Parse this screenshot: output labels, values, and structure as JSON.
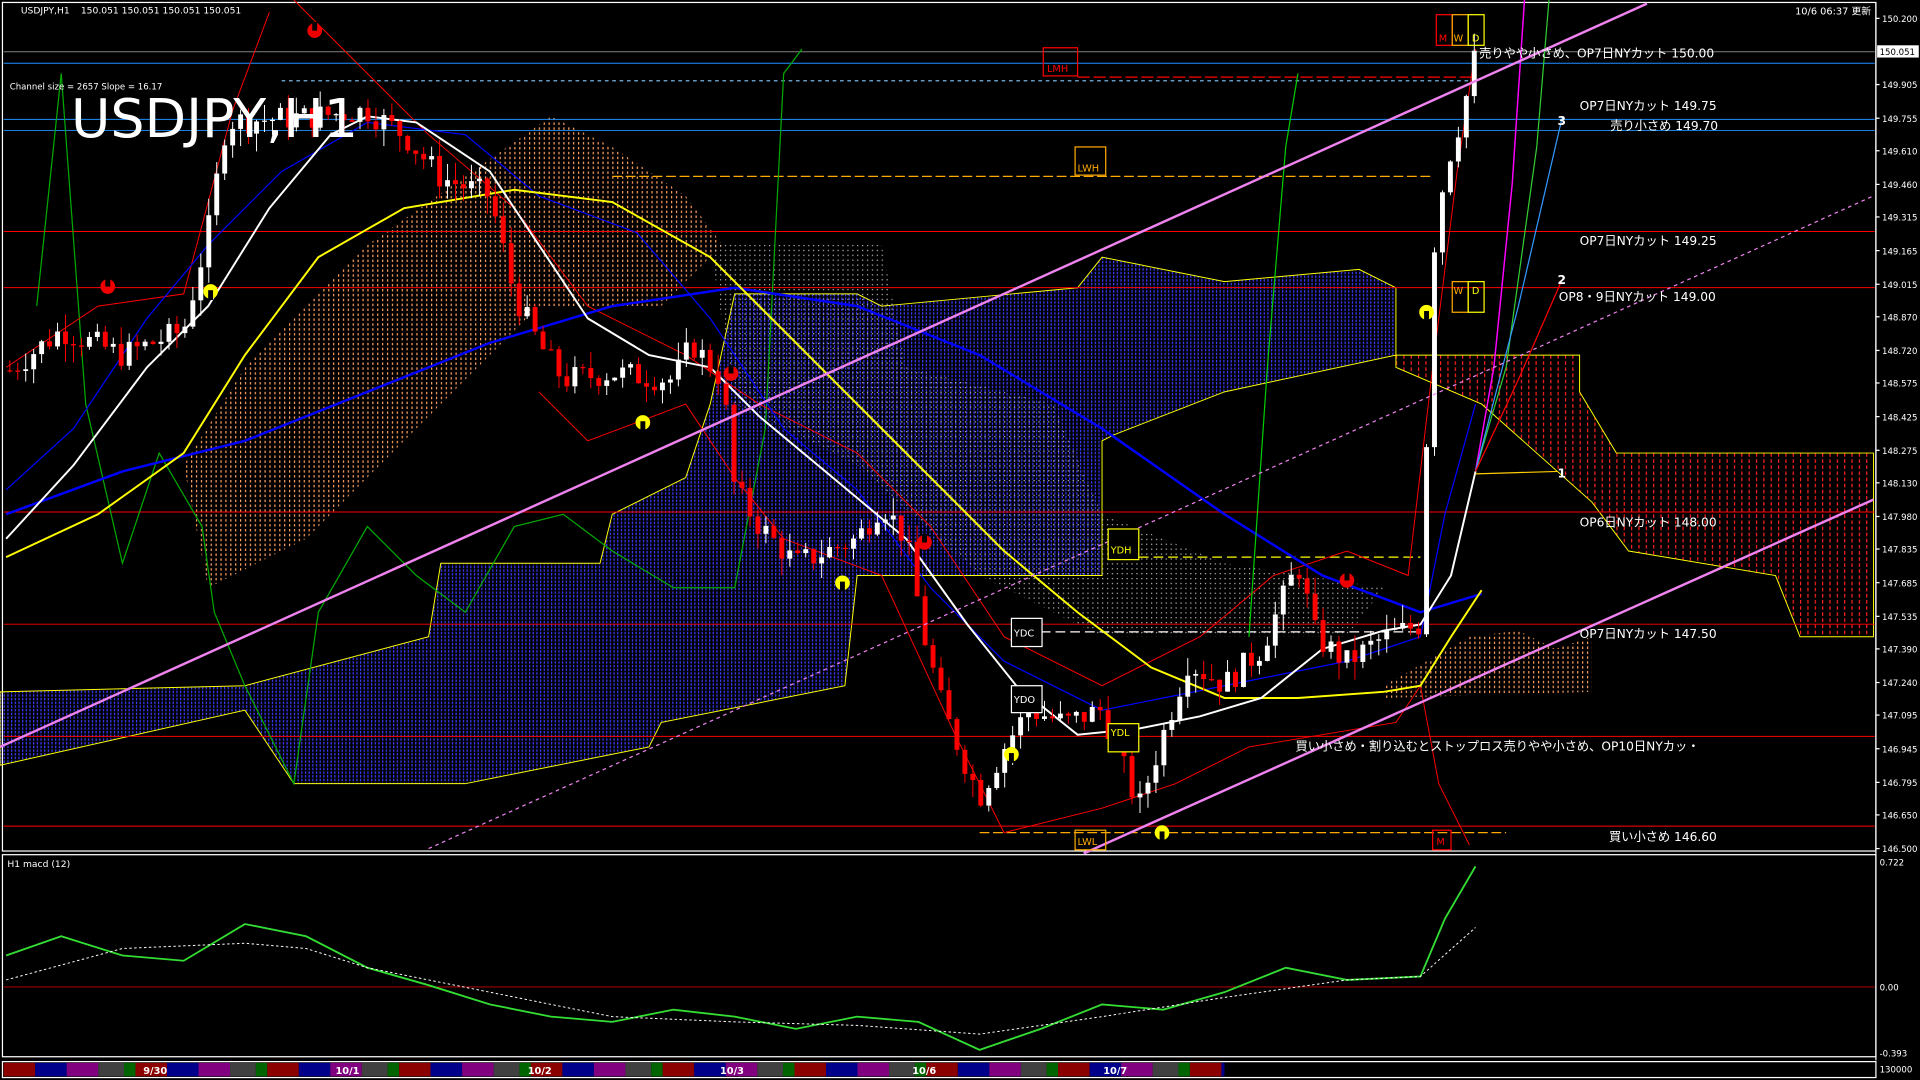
{
  "window": {
    "header_symbol": "USDJPY,H1",
    "header_prices": "150.051 150.051 150.051 150.051",
    "channel_info": "Channel size = 2657 Slope = 16.17",
    "big_title": "USDJPY,H1",
    "update_time": "10/6 06:37 更新"
  },
  "colors": {
    "background": "#000000",
    "bull_candle": "#ffffff",
    "bear_candle": "#ff0000",
    "channel": "#ee82ee",
    "ma_fast": "#ffffff",
    "ma_mid": "#ffff00",
    "ma_slow": "#0000ff",
    "macd_main": "#33dd33",
    "macd_signal": "#ffffff",
    "level_line": "#ff0000",
    "current_price_line": "#808080",
    "option_line": "#1e90ff"
  },
  "annotations": [
    {
      "text": "売りやや小さめ、OP7日NYカット 150.00"
    },
    {
      "text": "OP7日NYカット 149.75"
    },
    {
      "text": "売り小さめ 149.70"
    },
    {
      "text": "OP7日NYカット 149.25"
    },
    {
      "text": "OP8・9日NYカット 149.00"
    },
    {
      "text": "OP6日NYカット 148.00"
    },
    {
      "text": "OP7日NYカット 147.50"
    },
    {
      "text": "買い小さめ・割り込むとストップロス売りやや小さめ、OP10日NYカッ・"
    },
    {
      "text": "買い小さめ 146.60"
    }
  ],
  "fan_labels": [
    "1",
    "2",
    "3"
  ],
  "boxes": {
    "m": "M",
    "w": "W",
    "d": "D",
    "w2": "W",
    "d2": "D",
    "lmh": "LMH",
    "lwh": "LWH",
    "ydh": "YDH",
    "ydc": "YDC",
    "ydo": "YDO",
    "ydl": "YDL",
    "lwl": "LWL",
    "m2": "M"
  },
  "price_axis": {
    "current_price": "150.051",
    "ticks": [
      "150.200",
      "149.905",
      "149.755",
      "149.610",
      "149.460",
      "149.315",
      "149.165",
      "149.015",
      "148.870",
      "148.720",
      "148.575",
      "148.425",
      "148.275",
      "148.130",
      "147.980",
      "147.835",
      "147.685",
      "147.535",
      "147.390",
      "147.240",
      "147.095",
      "146.945",
      "146.795",
      "146.650",
      "146.500"
    ]
  },
  "macd_pane": {
    "label": "H1  macd (12)",
    "axis_top": "0.722",
    "axis_zero": "0.00",
    "axis_bottom": "-0.393",
    "volume_label": "130000"
  },
  "date_bar": {
    "labels": [
      "9/30",
      "10/1",
      "10/2",
      "10/3",
      "10/6",
      "10/7"
    ]
  },
  "chart_data": {
    "type": "candlestick",
    "symbol": "USDJPY",
    "timeframe": "H1",
    "ylim": [
      146.5,
      150.2
    ],
    "x_tick_labels": [
      "9/30",
      "10/1",
      "10/2",
      "10/3",
      "10/6",
      "10/7"
    ],
    "close_approx": [
      148.64,
      148.81,
      148.7,
      148.81,
      149.25,
      149.74,
      149.76,
      149.79,
      149.68,
      149.49,
      149.41,
      148.97,
      148.75,
      148.59,
      148.62,
      148.59,
      148.75,
      148.59,
      148.1,
      147.94,
      147.77,
      147.88,
      148.04,
      147.88,
      147.44,
      147.12,
      146.73,
      146.95,
      147.12,
      147.06,
      147.12,
      146.68,
      147.01,
      147.33,
      147.23,
      147.39,
      147.77,
      147.44,
      147.33,
      147.44,
      147.5,
      149.14,
      149.52,
      149.79,
      150.04,
      150.051
    ],
    "last_price": 150.051,
    "horizontal_levels": [
      150.0,
      149.75,
      149.7,
      149.25,
      149.0,
      148.0,
      147.5,
      147.0,
      146.6
    ],
    "macd": {
      "ylim": [
        -0.393,
        0.722
      ],
      "main_approx": [
        0.18,
        0.29,
        0.18,
        0.15,
        0.36,
        0.29,
        0.11,
        0.01,
        -0.1,
        -0.17,
        -0.2,
        -0.13,
        -0.17,
        -0.24,
        -0.17,
        -0.2,
        -0.36,
        -0.24,
        -0.1,
        -0.13,
        -0.03,
        0.11,
        0.04,
        0.06,
        0.39,
        0.69
      ],
      "signal_approx": [
        0.04,
        0.22,
        0.25,
        0.22,
        0.11,
        -0.03,
        -0.17,
        -0.2,
        -0.22,
        -0.27,
        -0.17,
        -0.06,
        0.04,
        0.06,
        0.34
      ]
    }
  }
}
